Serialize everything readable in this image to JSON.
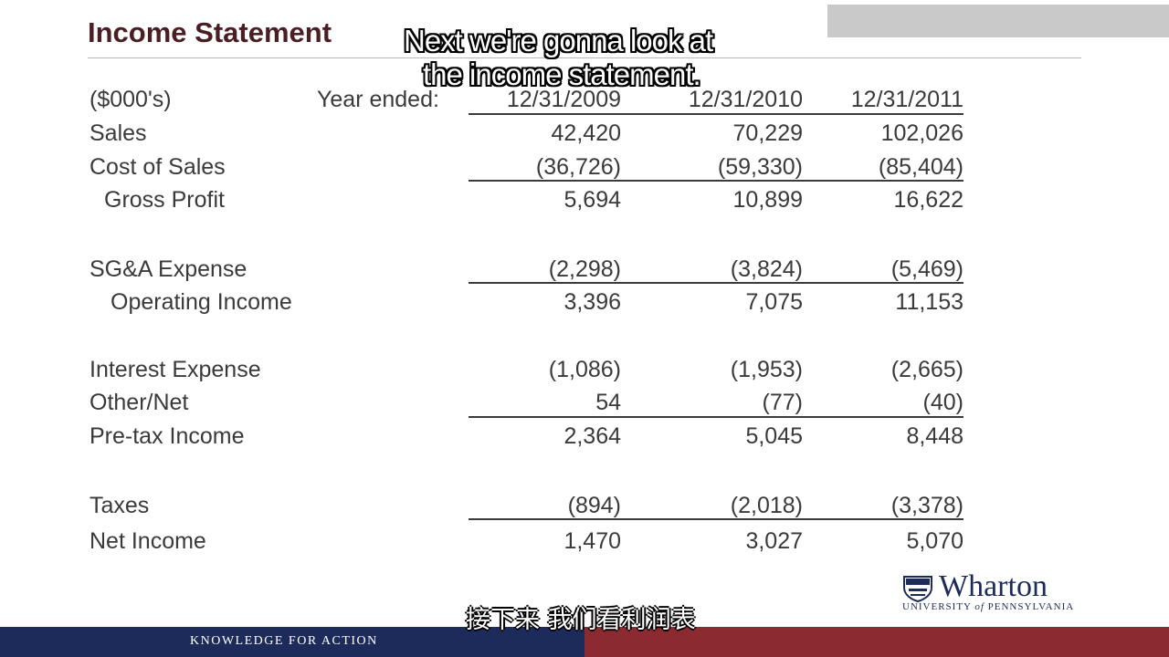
{
  "slide": {
    "title": "Income Statement",
    "units_label": "($000's)",
    "year_ended_label": "Year ended:",
    "years": [
      "12/31/2009",
      "12/31/2010",
      "12/31/2011"
    ]
  },
  "rows": {
    "sales": {
      "label": "Sales",
      "values": [
        "42,420",
        "70,229",
        "102,026"
      ]
    },
    "cost_of_sales": {
      "label": "Cost of Sales",
      "values": [
        "(36,726)",
        "(59,330)",
        "(85,404)"
      ]
    },
    "gross_profit": {
      "label": "Gross Profit",
      "values": [
        "5,694",
        "10,899",
        "16,622"
      ]
    },
    "sga_expense": {
      "label": "SG&A Expense",
      "values": [
        "(2,298)",
        "(3,824)",
        "(5,469)"
      ]
    },
    "operating_income": {
      "label": "Operating Income",
      "values": [
        "3,396",
        "7,075",
        "11,153"
      ]
    },
    "interest_expense": {
      "label": "Interest Expense",
      "values": [
        "(1,086)",
        "(1,953)",
        "(2,665)"
      ]
    },
    "other_net": {
      "label": "Other/Net",
      "values": [
        "54",
        "(77)",
        "(40)"
      ]
    },
    "pretax_income": {
      "label": "Pre-tax Income",
      "values": [
        "2,364",
        "5,045",
        "8,448"
      ]
    },
    "taxes": {
      "label": "Taxes",
      "values": [
        "(894)",
        "(2,018)",
        "(3,378)"
      ]
    },
    "net_income": {
      "label": "Net Income",
      "values": [
        "1,470",
        "3,027",
        "5,070"
      ]
    }
  },
  "captions": {
    "line1": "Next we're gonna look at",
    "line2": "the income statement.",
    "chinese": "接下来 我们看利润表"
  },
  "footer": {
    "tagline": "KNOWLEDGE FOR ACTION"
  },
  "logo": {
    "name": "Wharton",
    "sub_prefix": "UNIVERSITY ",
    "sub_of": "of",
    "sub_suffix": " PENNSYLVANIA"
  },
  "colors": {
    "title": "#4a1e22",
    "footer_blue": "#1d2b5a",
    "footer_red": "#8b2a31",
    "text": "#3a3a3a"
  }
}
